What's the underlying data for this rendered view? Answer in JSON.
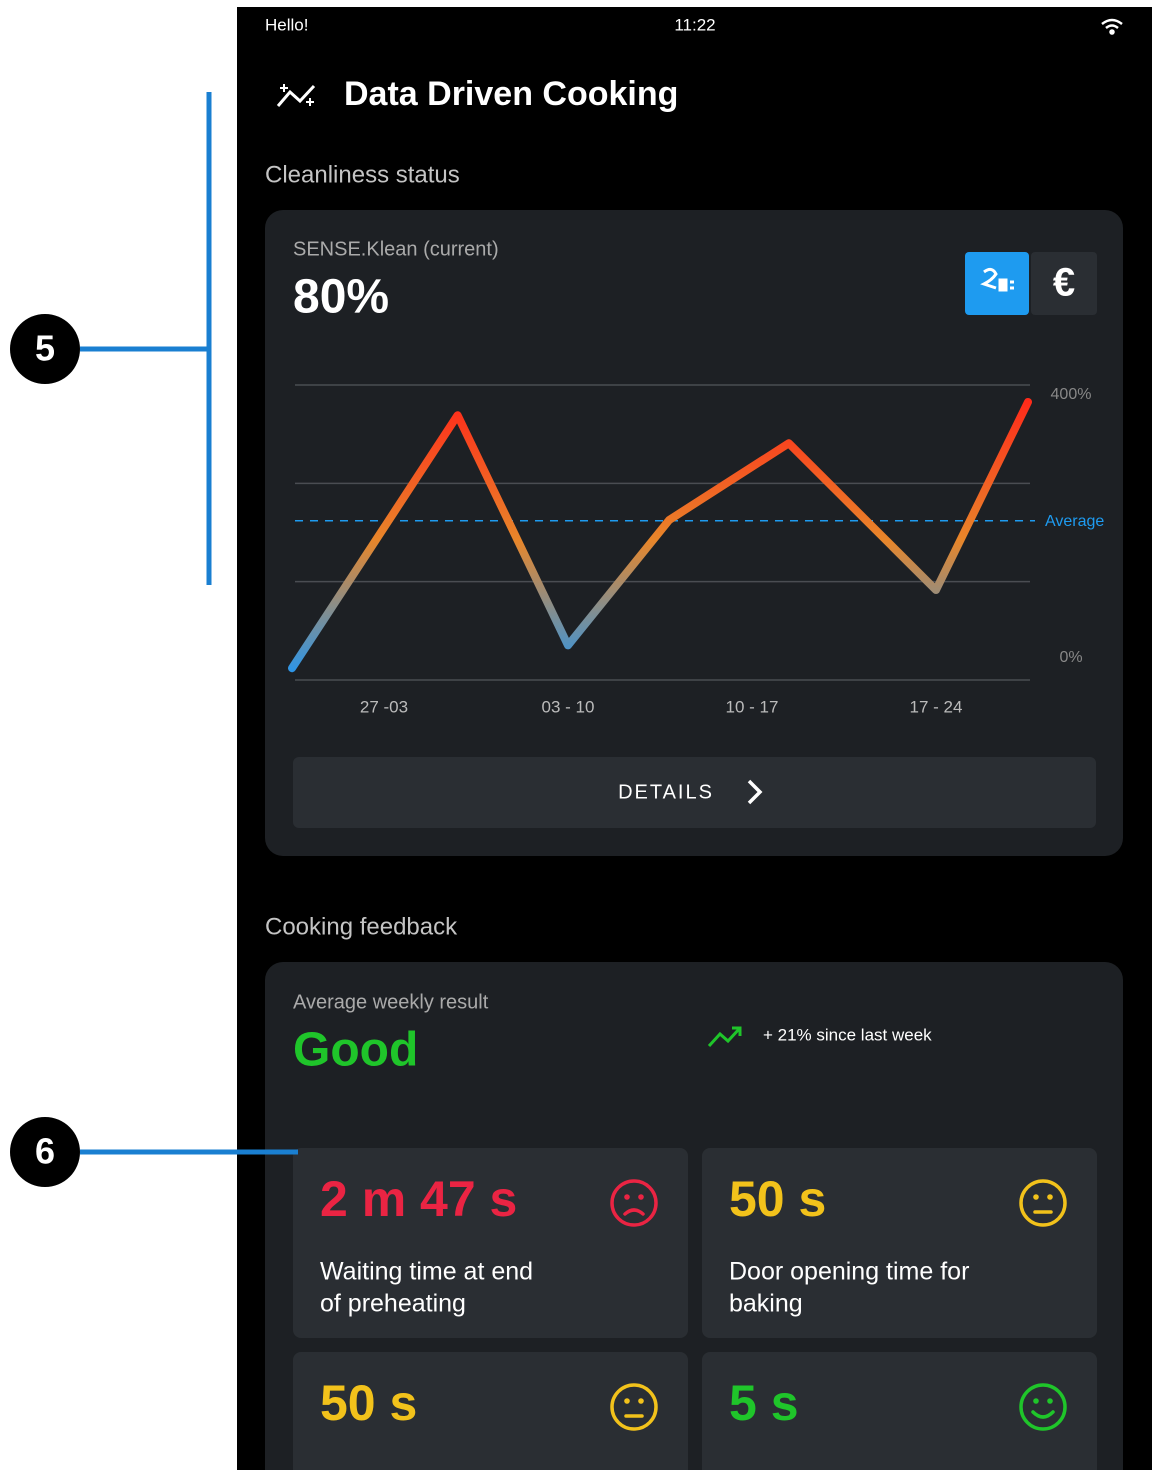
{
  "status_bar": {
    "left": "Hello!",
    "time": "11:22"
  },
  "header": {
    "title": "Data Driven Cooking"
  },
  "cleanliness": {
    "section_title": "Cleanliness status",
    "card_label": "SENSE.Klean (current)",
    "current_value": "80%",
    "currency_button": "€",
    "details_button": "DETAILS"
  },
  "chart_data": {
    "type": "line",
    "x": [
      -0.5,
      0.4,
      1.0,
      1.55,
      2.2,
      3.0,
      3.5
    ],
    "series": [
      {
        "values": [
          16,
          359,
          47,
          217,
          321,
          122,
          377
        ],
        "gradient": [
          "#2196f3",
          "#e8862a",
          "#ff2a1a"
        ]
      }
    ],
    "xlim": [
      -0.5,
      3.5
    ],
    "xticks": [
      {
        "value": 0,
        "label": "27  -03"
      },
      {
        "value": 1,
        "label": "03 - 10"
      },
      {
        "value": 2,
        "label": "10 - 17"
      },
      {
        "value": 3,
        "label": "17 - 24"
      }
    ],
    "ylim": [
      0,
      400
    ],
    "yticks": [
      {
        "value": 0,
        "label": "0%"
      },
      {
        "value": 400,
        "label": "400%"
      }
    ],
    "average": {
      "value": 216,
      "label": "Average",
      "color": "#1e9bf0"
    },
    "grid": true
  },
  "cooking_feedback": {
    "section_title": "Cooking feedback",
    "card_label": "Average weekly result",
    "result": "Good",
    "trend": "+ 21% since last week",
    "tiles": [
      {
        "value": "2 m 47 s",
        "label_lines": [
          "Waiting time at end",
          "of preheating"
        ],
        "status": "bad",
        "color": "#ea2443"
      },
      {
        "value": "50 s",
        "label_lines": [
          "Door opening time for",
          "baking"
        ],
        "status": "neutral",
        "color": "#f2c21b"
      },
      {
        "value": "50 s",
        "label_lines": [],
        "status": "neutral",
        "color": "#f2c21b"
      },
      {
        "value": "5 s",
        "label_lines": [],
        "status": "good",
        "color": "#1fc52a"
      }
    ]
  },
  "callouts": [
    "5",
    "6"
  ]
}
